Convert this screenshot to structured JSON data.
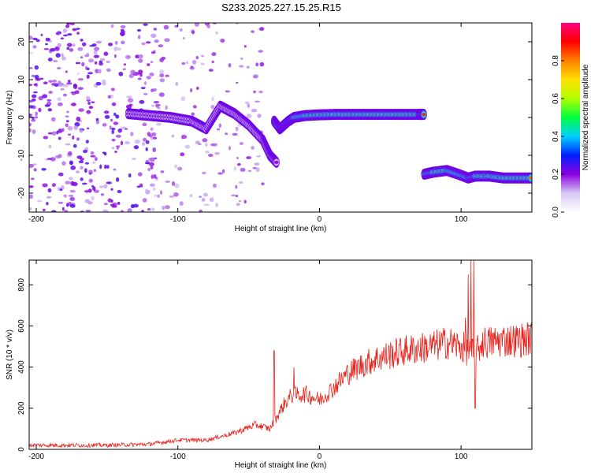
{
  "figure": {
    "title": "S233.2025.227.15.25.R15"
  },
  "chart_data": [
    {
      "type": "heatmap",
      "xlabel": "Height of straight line (km)",
      "ylabel": "Frequency (Hz)",
      "xlim": [
        -205,
        150
      ],
      "ylim": [
        -25,
        25
      ],
      "xticks": [
        -200,
        -100,
        0,
        100
      ],
      "yticks": [
        -20,
        -10,
        0,
        10,
        20
      ],
      "colorbar": {
        "label": "Normalized spectral amplitude",
        "range": [
          0,
          1
        ],
        "ticks": [
          "0.0",
          "0.2",
          "0.4",
          "0.6",
          "0.8"
        ],
        "tick_values": [
          0,
          0.2,
          0.4,
          0.6,
          0.8
        ],
        "colormap": [
          "#ffffff",
          "#d8c8f4",
          "#8a00e0",
          "#0020ff",
          "#00d0ff",
          "#00ff40",
          "#b0ff00",
          "#ffe000",
          "#ff8000",
          "#ff0000",
          "#ff0080"
        ]
      },
      "ridge_segments": [
        {
          "x": [
            -135,
            -120,
            -105,
            -90,
            -80,
            -70,
            -60,
            -50,
            -40,
            -35,
            -30
          ],
          "y": [
            1,
            0.5,
            0,
            -1,
            -3,
            3,
            1,
            -2,
            -6,
            -10,
            -12
          ],
          "peak": 0.25
        },
        {
          "x": [
            -32,
            -28,
            -25,
            -22,
            -18,
            -10,
            0,
            10,
            20,
            30,
            40,
            50,
            60,
            70,
            74
          ],
          "y": [
            -1,
            -3,
            -2,
            -1,
            0,
            0.5,
            0.7,
            0.8,
            0.8,
            0.8,
            0.8,
            0.8,
            0.8,
            0.8,
            0.8
          ],
          "peak": 0.9
        },
        {
          "x": [
            74,
            80,
            90,
            98,
            105,
            110,
            120,
            130,
            140,
            150
          ],
          "y": [
            -15,
            -14.5,
            -14,
            -15,
            -16,
            -15.5,
            -15.5,
            -16,
            -16,
            -16
          ],
          "peak": 0.9
        }
      ],
      "noise_region": {
        "x": [
          -205,
          -40
        ],
        "y": [
          -25,
          25
        ],
        "level": [
          0.1,
          0.25
        ]
      }
    },
    {
      "type": "line",
      "xlabel": "Height of straight line (km)",
      "ylabel": "SNR (10 * v/v)",
      "xlim": [
        -205,
        150
      ],
      "ylim": [
        0,
        920
      ],
      "xticks": [
        -200,
        -100,
        0,
        100
      ],
      "yticks": [
        0,
        200,
        400,
        600,
        800
      ],
      "color": "#e8201a",
      "trend": {
        "x": [
          -205,
          -150,
          -120,
          -100,
          -80,
          -60,
          -45,
          -35,
          -30,
          -25,
          -20,
          -10,
          0,
          10,
          20,
          30,
          40,
          50,
          60,
          70,
          80,
          90,
          100,
          105,
          110,
          115,
          120,
          130,
          140,
          150
        ],
        "y": [
          20,
          20,
          25,
          45,
          45,
          80,
          120,
          100,
          160,
          220,
          260,
          270,
          240,
          300,
          370,
          410,
          440,
          460,
          480,
          490,
          500,
          520,
          500,
          480,
          460,
          520,
          520,
          530,
          530,
          540
        ]
      },
      "peaks": [
        {
          "x": -32,
          "y": 480
        },
        {
          "x": -18,
          "y": 400
        },
        {
          "x": 98,
          "y": 510
        },
        {
          "x": 103,
          "y": 640
        },
        {
          "x": 105,
          "y": 850
        },
        {
          "x": 107,
          "y": 920
        },
        {
          "x": 109,
          "y": 920
        },
        {
          "x": 110,
          "y": 200
        }
      ]
    }
  ]
}
